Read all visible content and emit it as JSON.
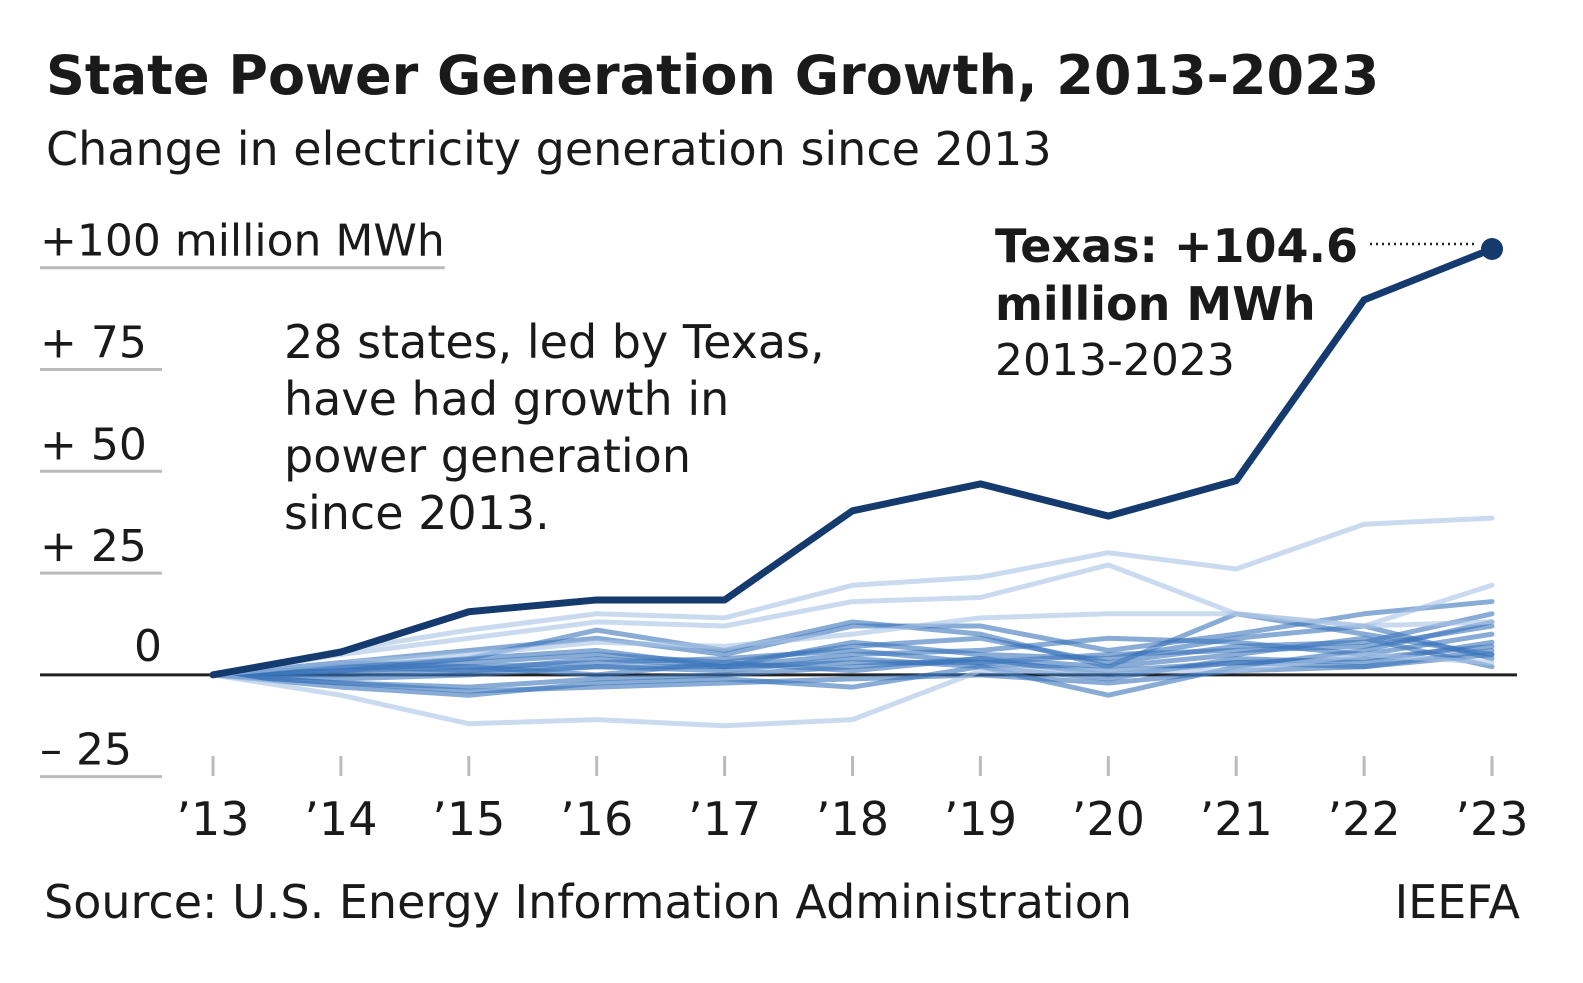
{
  "chart_data": {
    "type": "line",
    "title": "State Power Generation Growth, 2013-2023",
    "subtitle": "Change in electricity generation since 2013",
    "categories": [
      "’13",
      "’14",
      "’15",
      "’16",
      "’17",
      "’18",
      "’19",
      "’20",
      "’21",
      "’22",
      "’23"
    ],
    "ylim": [
      -30,
      110
    ],
    "yticks": [
      {
        "value": 100,
        "label": "+100 million MWh"
      },
      {
        "value": 75,
        "label": "+ 75"
      },
      {
        "value": 50,
        "label": "+ 50"
      },
      {
        "value": 25,
        "label": "+ 25"
      },
      0,
      {
        "value": -25,
        "label": "– 25"
      }
    ],
    "grid": true,
    "series": [
      {
        "color": "#143a6e",
        "width": 7,
        "values": [
          0,
          5.6,
          15.5,
          18.4,
          18.4,
          40.3,
          46.9,
          39,
          47.7,
          92.1,
          104.6
        ]
      },
      {
        "color": "#a8c3e5",
        "width": 5,
        "values": [
          0,
          6,
          11,
          15,
          14,
          22,
          24,
          30,
          26,
          37,
          38.5
        ]
      },
      {
        "color": "#a8c3e5",
        "width": 5,
        "values": [
          0,
          5,
          9,
          13,
          12,
          18,
          19,
          27,
          15,
          12,
          22
        ]
      },
      {
        "color": "#a8c3e5",
        "width": 5,
        "values": [
          0,
          -5,
          -12,
          -11,
          -12.5,
          -11,
          1,
          1,
          1,
          5,
          3
        ]
      },
      {
        "color": "#a8c3e5",
        "width": 5,
        "values": [
          0,
          3,
          5,
          8,
          7,
          10,
          14,
          15,
          15,
          12,
          13
        ]
      },
      {
        "color": "#3a75bb",
        "width": 5,
        "values": [
          0,
          2,
          4,
          11,
          6,
          13,
          10,
          2,
          15,
          10,
          5
        ]
      },
      {
        "color": "#3a75bb",
        "width": 5,
        "values": [
          0,
          3,
          6,
          9,
          5,
          12,
          12,
          6,
          10,
          15,
          18
        ]
      },
      {
        "color": "#3a75bb",
        "width": 5,
        "values": [
          0,
          -3,
          -5,
          -2,
          -1,
          -3,
          2,
          -5,
          2,
          6,
          13
        ]
      },
      {
        "color": "#3a75bb",
        "width": 5,
        "values": [
          0,
          1,
          3,
          5,
          3,
          7,
          9,
          3,
          7,
          8,
          15
        ]
      },
      {
        "color": "#3a75bb",
        "width": 5,
        "values": [
          0,
          2,
          1,
          4,
          2,
          5,
          6,
          9,
          8,
          5,
          10
        ]
      },
      {
        "color": "#3a75bb",
        "width": 5,
        "values": [
          0,
          -2,
          -3,
          -1,
          0,
          2,
          4,
          0,
          3,
          4,
          7
        ]
      },
      {
        "color": "#3a75bb",
        "width": 5,
        "values": [
          0,
          1,
          2,
          3,
          4,
          6,
          3,
          5,
          6,
          7,
          12
        ]
      },
      {
        "color": "#3a75bb",
        "width": 5,
        "values": [
          0,
          -1,
          0,
          2,
          1,
          4,
          2,
          -1,
          4,
          3,
          8
        ]
      },
      {
        "color": "#3a75bb",
        "width": 5,
        "values": [
          0,
          1,
          4,
          6,
          2,
          8,
          5,
          4,
          9,
          12,
          4
        ]
      },
      {
        "color": "#3a75bb",
        "width": 5,
        "values": [
          0,
          -2,
          -4,
          -3,
          -2,
          -1,
          0,
          -2,
          1,
          2,
          5
        ]
      },
      {
        "color": "#3a75bb",
        "width": 5,
        "values": [
          0,
          3,
          2,
          0,
          3,
          1,
          4,
          2,
          5,
          9,
          2
        ]
      },
      {
        "color": "#3a75bb",
        "width": 5,
        "values": [
          0,
          0,
          1,
          2,
          2,
          3,
          3,
          1,
          3,
          2,
          6
        ]
      }
    ],
    "note": [
      "28 states, led by Texas,",
      "have had growth in",
      "power generation",
      "since 2013."
    ],
    "annotation": [
      "Texas: +104.6",
      "million MWh",
      "2013-2023"
    ],
    "source": "Source: U.S. Energy Information Administration",
    "credit": "IEEFA"
  }
}
